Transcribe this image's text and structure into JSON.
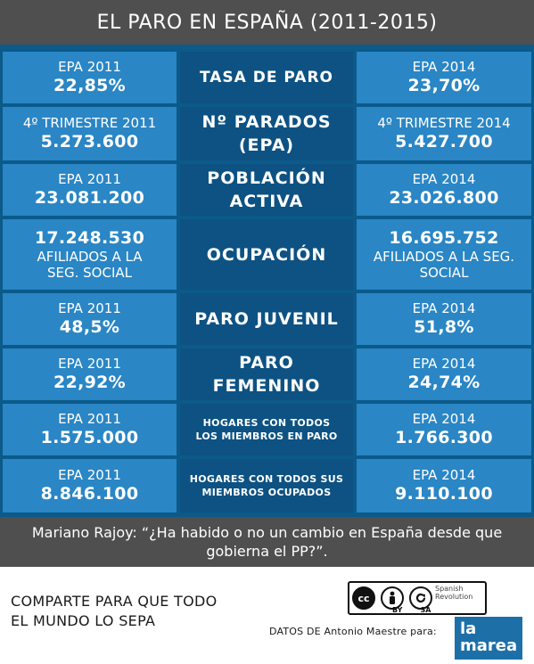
{
  "header": {
    "title": "EL PARO EN ESPAÑA (2011-2015)"
  },
  "rows": [
    {
      "left": {
        "label": "EPA 2011",
        "value": "22,85%"
      },
      "title": [
        "TASA DE PARO"
      ],
      "right": {
        "label": "EPA 2014",
        "value": "23,70%"
      }
    },
    {
      "left": {
        "label": "4º TRIMESTRE 2011",
        "value": "5.273.600"
      },
      "title": [
        "Nº PARADOS",
        "(EPA)"
      ],
      "right": {
        "label": "4º TRIMESTRE 2014",
        "value": "5.427.700"
      }
    },
    {
      "left": {
        "label": "EPA 2011",
        "value": "23.081.200"
      },
      "title": [
        "POBLACIÓN",
        "ACTIVA"
      ],
      "right": {
        "label": "EPA 2014",
        "value": "23.026.800"
      }
    },
    {
      "left": {
        "value": "17.248.530",
        "sub": [
          "AFILIADOS A LA",
          "SEG. SOCIAL"
        ]
      },
      "title": [
        "OCUPACIÓN"
      ],
      "right": {
        "value": "16.695.752",
        "sub": [
          "AFILIADOS A LA SEG.",
          "SOCIAL"
        ]
      }
    },
    {
      "left": {
        "label": "EPA 2011",
        "value": "48,5%"
      },
      "title": [
        "PARO JUVENIL"
      ],
      "right": {
        "label": "EPA 2014",
        "value": "51,8%"
      }
    },
    {
      "left": {
        "label": "EPA 2011",
        "value": "22,92%"
      },
      "title": [
        "PARO",
        "FEMENINO"
      ],
      "right": {
        "label": "EPA 2014",
        "value": "24,74%"
      }
    },
    {
      "left": {
        "label": "EPA 2011",
        "value": "1.575.000"
      },
      "title": [
        "HOGARES CON TODOS",
        "LOS MIEMBROS EN PARO"
      ],
      "right": {
        "label": "EPA 2014",
        "value": "1.766.300"
      }
    },
    {
      "left": {
        "label": "EPA 2011",
        "value": "8.846.100"
      },
      "title": [
        "HOGARES CON TODOS SUS",
        "MIEMBROS OCUPADOS"
      ],
      "right": {
        "label": "EPA 2014",
        "value": "9.110.100"
      }
    }
  ],
  "quote": {
    "line1": "Mariano Rajoy: “¿Ha habido o no un cambio en España desde que",
    "line2": "gobierna el PP?”."
  },
  "footer": {
    "share_line1": "COMPARTE PARA QUE TODO",
    "share_line2": "EL MUNDO LO SEPA",
    "credits": "DATOS DE Antonio Maestre para:",
    "license": {
      "cc": "cc",
      "by": "BY",
      "sa": "SA",
      "tag_line1": "Spanish",
      "tag_line2": "Revolution"
    },
    "logo_line1": "la",
    "logo_line2": "marea"
  },
  "colors": {
    "side_cell": "#2a86c5",
    "middle_cell": "#0d5283",
    "band": "#4f4f4f"
  }
}
